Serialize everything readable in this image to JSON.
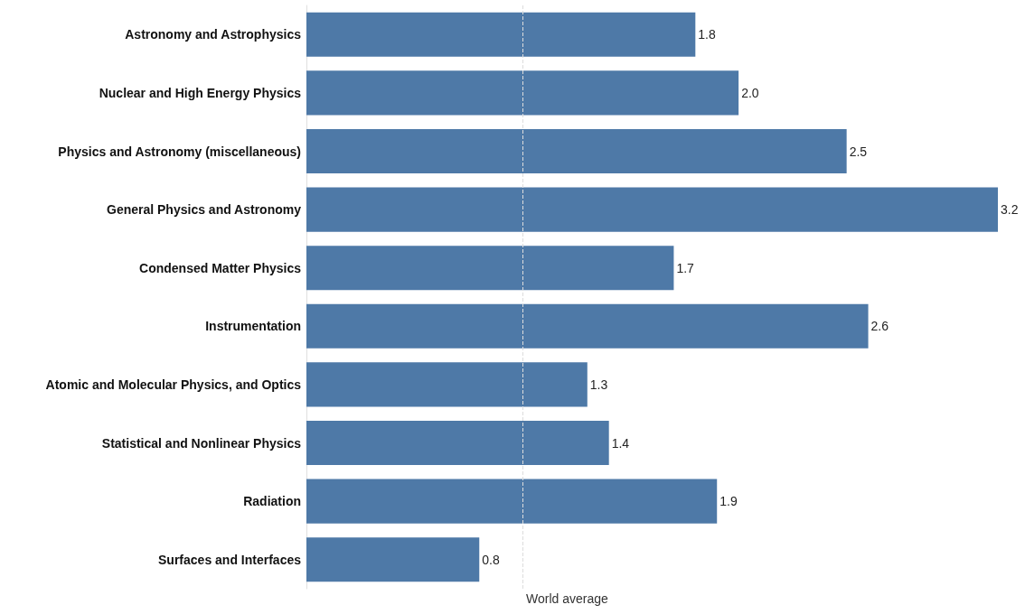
{
  "chart_data": {
    "type": "bar",
    "orientation": "horizontal",
    "categories": [
      "Astronomy and Astrophysics",
      "Nuclear and High Energy Physics",
      "Physics and Astronomy (miscellaneous)",
      "General Physics and Astronomy",
      "Condensed Matter Physics",
      "Instrumentation",
      "Atomic and Molecular Physics, and Optics",
      "Statistical and Nonlinear Physics",
      "Radiation",
      "Surfaces and Interfaces"
    ],
    "values": [
      1.8,
      2.0,
      2.5,
      3.2,
      1.7,
      2.6,
      1.3,
      1.4,
      1.9,
      0.8
    ],
    "color": "#4e79a7",
    "value_labels": [
      "1.8",
      "2.0",
      "2.5",
      "3.2",
      "1.7",
      "2.6",
      "1.3",
      "1.4",
      "1.9",
      "0.8"
    ],
    "xlim": [
      0,
      3.2
    ],
    "tick_labels": "y",
    "grid": false,
    "ref_lines": [
      {
        "axis": "x",
        "value": 1,
        "label": "World average",
        "color": "#dddddd",
        "line_style": "dashed"
      }
    ]
  }
}
